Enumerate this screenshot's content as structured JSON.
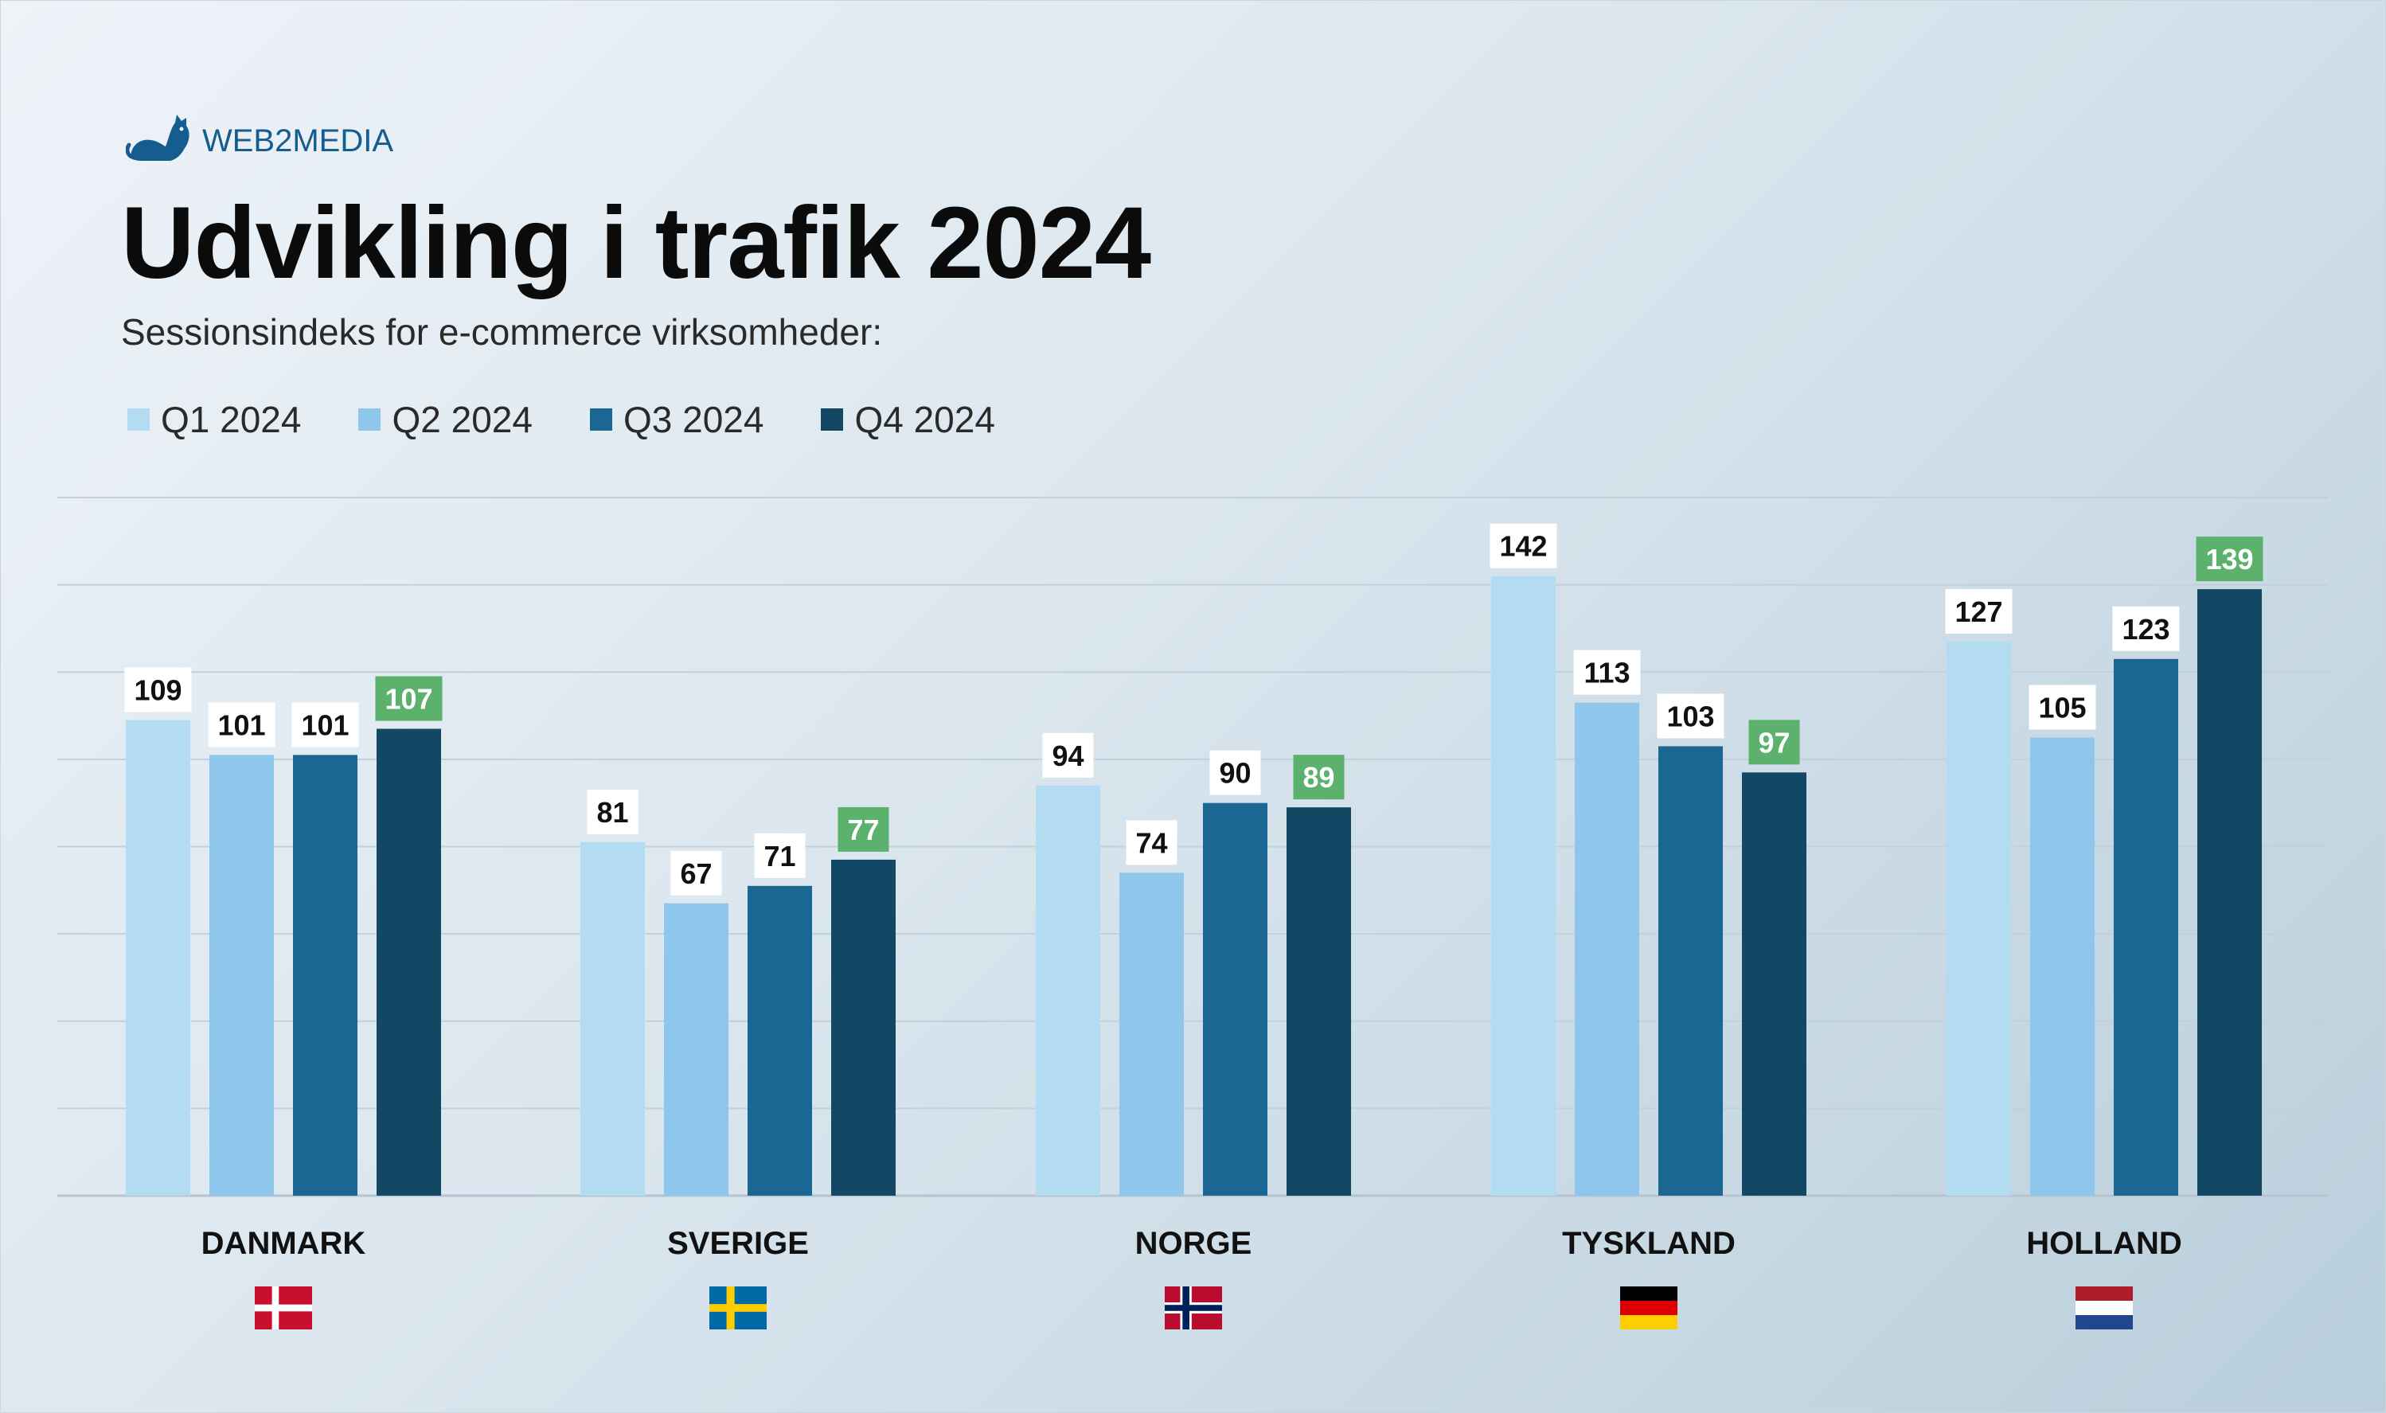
{
  "brand": {
    "name": "WEB2MEDIA",
    "logo_icon": "cat-icon",
    "color": "#155d8f"
  },
  "header": {
    "title": "Udvikling i trafik 2024",
    "subtitle": "Sessionsindeks for e-commerce virksomheder:"
  },
  "legend": [
    {
      "label": "Q1 2024",
      "color": "#b3dcf2"
    },
    {
      "label": "Q2 2024",
      "color": "#8ec7eb"
    },
    {
      "label": "Q3 2024",
      "color": "#1a6794"
    },
    {
      "label": "Q4 2024",
      "color": "#124863"
    }
  ],
  "chart_data": {
    "type": "bar",
    "categories": [
      "DANMARK",
      "SVERIGE",
      "NORGE",
      "TYSKLAND",
      "HOLLAND"
    ],
    "series": [
      {
        "name": "Q1 2024",
        "values": [
          109,
          81,
          94,
          142,
          127
        ],
        "color": "#b3dcf2"
      },
      {
        "name": "Q2 2024",
        "values": [
          101,
          67,
          74,
          113,
          105
        ],
        "color": "#8ec7eb"
      },
      {
        "name": "Q3 2024",
        "values": [
          101,
          71,
          90,
          103,
          123
        ],
        "color": "#1a6794"
      },
      {
        "name": "Q4 2024",
        "values": [
          107,
          77,
          89,
          97,
          139
        ],
        "color": "#124863"
      }
    ],
    "ylim": [
      0,
      160
    ],
    "grid": true,
    "title": "Udvikling i trafik 2024",
    "xlabel": "",
    "ylabel": "",
    "highlight_series": "Q4 2024",
    "highlight_label_color": "#5cb26d",
    "flags": [
      "flag-denmark-icon",
      "flag-sweden-icon",
      "flag-norway-icon",
      "flag-germany-icon",
      "flag-netherlands-icon"
    ]
  }
}
